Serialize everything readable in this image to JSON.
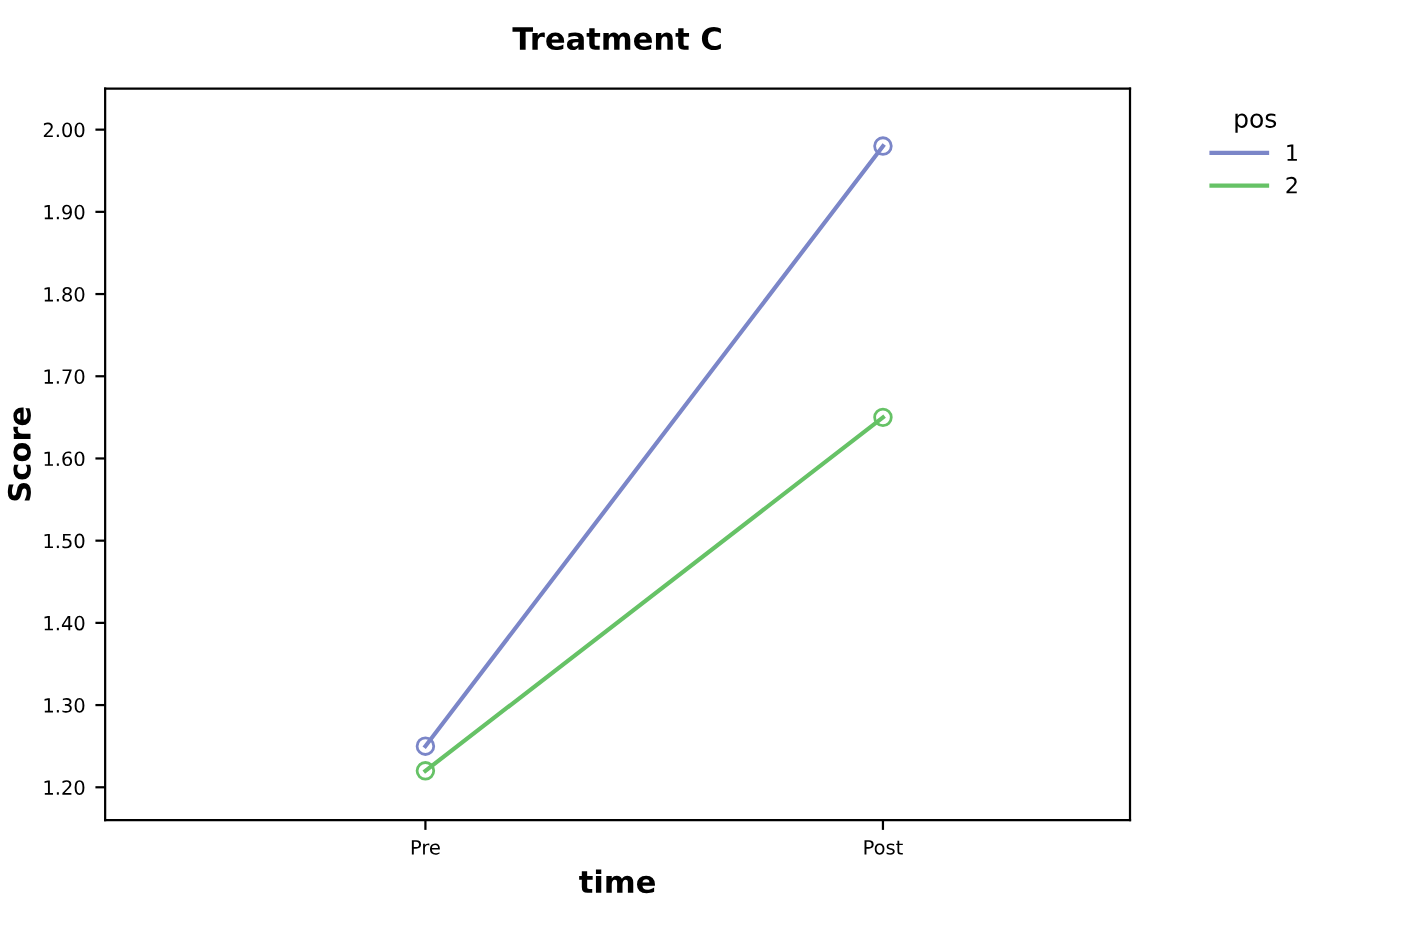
{
  "chart_data": {
    "type": "line",
    "title": "Treatment C",
    "xlabel": "time",
    "ylabel": "Score",
    "legend_title": "pos",
    "categories": [
      "Pre",
      "Post"
    ],
    "series": [
      {
        "name": "1",
        "color": "#7b86c8",
        "values": [
          1.25,
          1.98
        ]
      },
      {
        "name": "2",
        "color": "#66c266",
        "values": [
          1.22,
          1.65
        ]
      }
    ],
    "ylim": [
      1.16,
      2.05
    ],
    "yticks": [
      {
        "value": 1.2,
        "label": "1.20"
      },
      {
        "value": 1.3,
        "label": "1.30"
      },
      {
        "value": 1.4,
        "label": "1.40"
      },
      {
        "value": 1.5,
        "label": "1.50"
      },
      {
        "value": 1.6,
        "label": "1.60"
      },
      {
        "value": 1.7,
        "label": "1.70"
      },
      {
        "value": 1.8,
        "label": "1.80"
      },
      {
        "value": 1.9,
        "label": "1.90"
      },
      {
        "value": 2.0,
        "label": "2.00"
      }
    ],
    "marker": "circle",
    "line_style": "solid",
    "legend": "top right",
    "grid": false
  }
}
